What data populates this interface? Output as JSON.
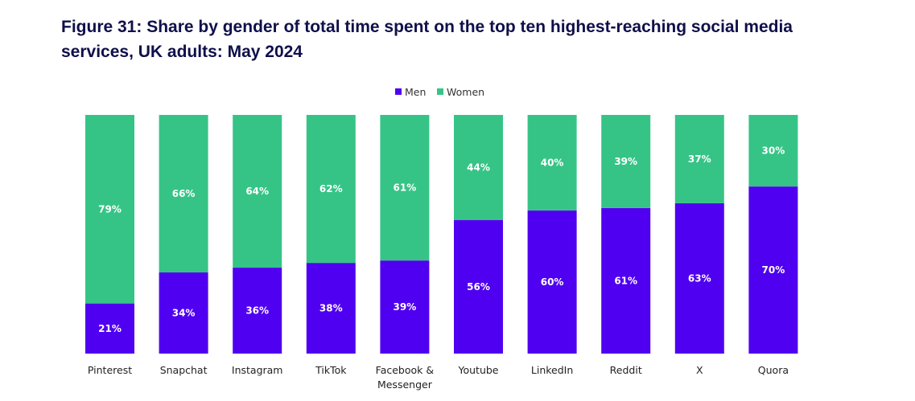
{
  "chart_data": {
    "type": "bar",
    "stacked": true,
    "title": "Figure 31: Share by gender of total time spent on the top ten highest-reaching social media services, UK adults: May 2024",
    "categories": [
      [
        "Pinterest"
      ],
      [
        "Snapchat"
      ],
      [
        "Instagram"
      ],
      [
        "TikTok"
      ],
      [
        "Facebook &",
        "Messenger"
      ],
      [
        "Youtube"
      ],
      [
        "LinkedIn"
      ],
      [
        "Reddit"
      ],
      [
        "X"
      ],
      [
        "Quora"
      ]
    ],
    "series": [
      {
        "name": "Men",
        "color": "#5000f0",
        "values": [
          21,
          34,
          36,
          38,
          39,
          56,
          60,
          61,
          63,
          70
        ]
      },
      {
        "name": "Women",
        "color": "#36c486",
        "values": [
          79,
          66,
          64,
          62,
          61,
          44,
          40,
          39,
          37,
          30
        ]
      }
    ],
    "ylim": [
      0,
      100
    ],
    "value_suffix": "%",
    "legend": "top-center",
    "grid": false
  }
}
